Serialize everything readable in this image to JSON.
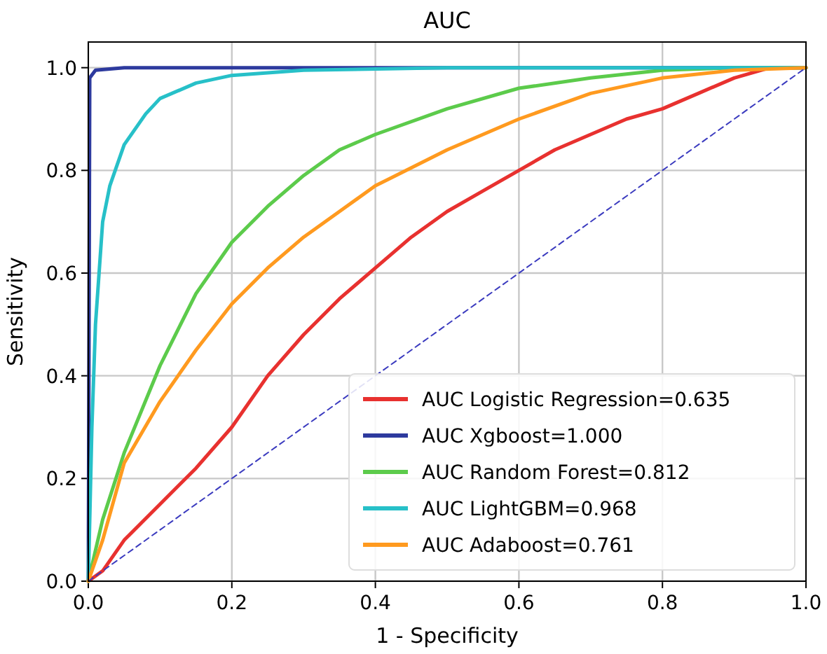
{
  "chart_data": {
    "type": "line",
    "title": "AUC",
    "xlabel": "1 - Specificity",
    "ylabel": "Sensitivity",
    "xlim": [
      0,
      1
    ],
    "ylim": [
      0,
      1.05
    ],
    "xticks": [
      {
        "value": 0,
        "label": "0.0"
      },
      0.2,
      0.4,
      0.6,
      0.8,
      {
        "value": 1,
        "label": "1.0"
      }
    ],
    "yticks": [
      {
        "value": 0,
        "label": "0.0"
      },
      0.2,
      0.4,
      0.6,
      0.8,
      {
        "value": 1,
        "label": "1.0"
      }
    ],
    "grid": true,
    "legend": "bottom right",
    "marker": "none",
    "line_style": "solid",
    "series": [
      {
        "name": "AUC Logistic Regression=0.635",
        "color": "#e8312f",
        "x": [
          0,
          0.02,
          0.05,
          0.1,
          0.15,
          0.2,
          0.25,
          0.3,
          0.35,
          0.4,
          0.45,
          0.5,
          0.55,
          0.6,
          0.65,
          0.7,
          0.75,
          0.8,
          0.85,
          0.9,
          0.95,
          1
        ],
        "values": [
          0,
          0.02,
          0.08,
          0.15,
          0.22,
          0.3,
          0.4,
          0.48,
          0.55,
          0.61,
          0.67,
          0.72,
          0.76,
          0.8,
          0.84,
          0.87,
          0.9,
          0.92,
          0.95,
          0.98,
          1,
          1
        ]
      },
      {
        "name": "AUC Xgboost=1.000",
        "color": "#2d3a9e",
        "x": [
          0,
          0.002,
          0.01,
          0.05,
          1
        ],
        "values": [
          0,
          0.98,
          0.995,
          1,
          1
        ]
      },
      {
        "name": "AUC Random Forest=0.812",
        "color": "#5ccb4b",
        "x": [
          0,
          0.02,
          0.05,
          0.1,
          0.15,
          0.2,
          0.25,
          0.3,
          0.35,
          0.4,
          0.5,
          0.6,
          0.7,
          0.8,
          0.9,
          1
        ],
        "values": [
          0,
          0.12,
          0.25,
          0.42,
          0.56,
          0.66,
          0.73,
          0.79,
          0.84,
          0.87,
          0.92,
          0.96,
          0.98,
          0.995,
          1,
          1
        ]
      },
      {
        "name": "AUC LightGBM=0.968",
        "color": "#27c0c8",
        "x": [
          0,
          0.005,
          0.01,
          0.02,
          0.03,
          0.05,
          0.08,
          0.1,
          0.15,
          0.2,
          0.3,
          0.5,
          1
        ],
        "values": [
          0,
          0.3,
          0.5,
          0.7,
          0.77,
          0.85,
          0.91,
          0.94,
          0.97,
          0.985,
          0.995,
          1,
          1
        ]
      },
      {
        "name": "AUC Adaboost=0.761",
        "color": "#ff9a1f",
        "x": [
          0,
          0.02,
          0.05,
          0.1,
          0.15,
          0.2,
          0.25,
          0.3,
          0.35,
          0.4,
          0.5,
          0.6,
          0.7,
          0.8,
          0.9,
          1
        ],
        "values": [
          0,
          0.08,
          0.23,
          0.35,
          0.45,
          0.54,
          0.61,
          0.67,
          0.72,
          0.77,
          0.84,
          0.9,
          0.95,
          0.98,
          0.995,
          1
        ]
      },
      {
        "color": "#3b3bbf",
        "line_style": "dashed",
        "x": [
          0,
          1
        ],
        "values": [
          0,
          1
        ]
      }
    ]
  }
}
